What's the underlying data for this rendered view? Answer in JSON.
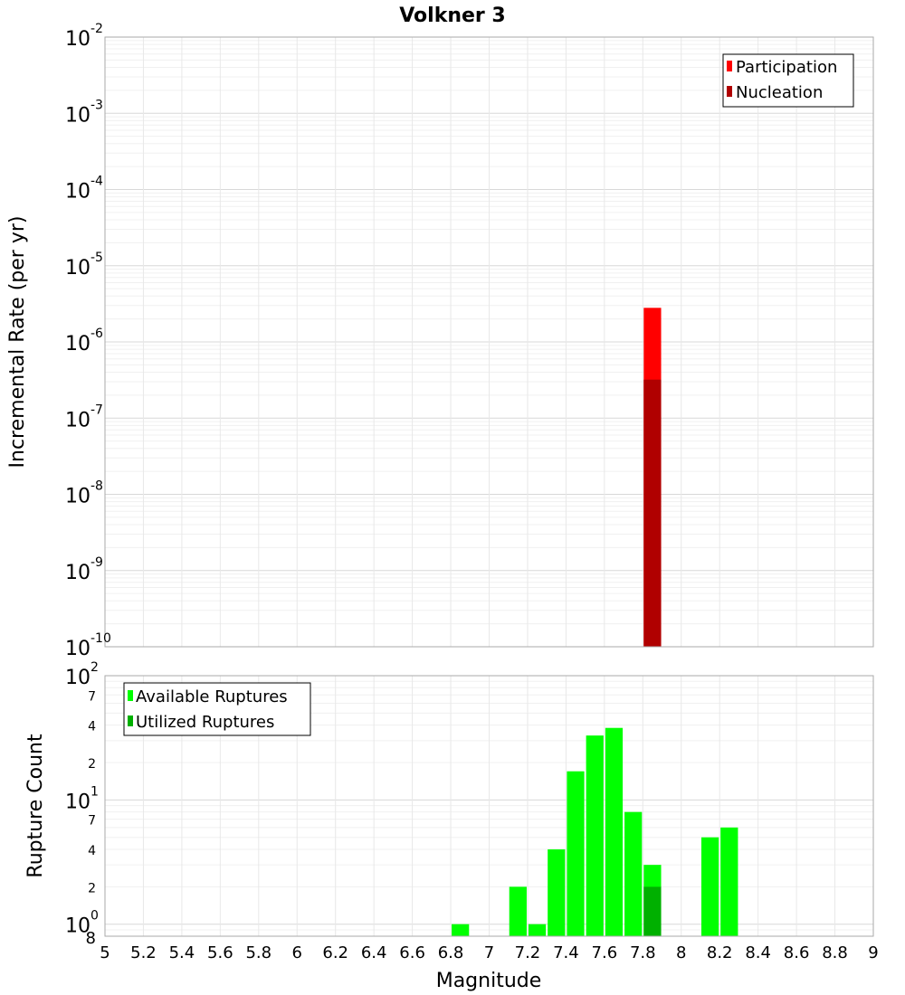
{
  "chart_data": [
    {
      "type": "bar",
      "title": "Volkner 3",
      "xlabel": "",
      "ylabel": "Incremental Rate (per yr)",
      "yscale": "log",
      "ylim": [
        1e-10,
        0.01
      ],
      "xlim": [
        5,
        9
      ],
      "grid": true,
      "legend_position": "top-right",
      "y_tick_labels": [
        {
          "base": "10",
          "exp": "-10",
          "value": 1e-10
        },
        {
          "base": "10",
          "exp": "-9",
          "value": 1e-09
        },
        {
          "base": "10",
          "exp": "-8",
          "value": 1e-08
        },
        {
          "base": "10",
          "exp": "-7",
          "value": 1e-07
        },
        {
          "base": "10",
          "exp": "-6",
          "value": 1e-06
        },
        {
          "base": "10",
          "exp": "-5",
          "value": 1e-05
        },
        {
          "base": "10",
          "exp": "-4",
          "value": 0.0001
        },
        {
          "base": "10",
          "exp": "-3",
          "value": 0.001
        },
        {
          "base": "10",
          "exp": "-2",
          "value": 0.01
        }
      ],
      "series": [
        {
          "name": "Participation",
          "color": "#ff0000",
          "x": [
            7.85
          ],
          "values": [
            2.8e-06
          ]
        },
        {
          "name": "Nucleation",
          "color": "#b00000",
          "x": [
            7.85
          ],
          "values": [
            3.2e-07
          ]
        }
      ]
    },
    {
      "type": "bar",
      "xlabel": "Magnitude",
      "ylabel": "Rupture Count",
      "yscale": "log",
      "ylim": [
        0.8,
        100
      ],
      "xlim": [
        5,
        9
      ],
      "grid": true,
      "legend_position": "top-left",
      "x_tick_labels": [
        "5",
        "5.2",
        "5.4",
        "5.6",
        "5.8",
        "6",
        "6.2",
        "6.4",
        "6.6",
        "6.8",
        "7",
        "7.2",
        "7.4",
        "7.6",
        "7.8",
        "8",
        "8.2",
        "8.4",
        "8.6",
        "8.8",
        "9"
      ],
      "y_tick_labels": [
        {
          "base": "10",
          "exp": "0",
          "value": 1
        },
        {
          "base": "10",
          "exp": "1",
          "value": 10
        },
        {
          "base": "10",
          "exp": "2",
          "value": 100
        }
      ],
      "y_minor_labels": [
        {
          "label": "8",
          "value": 0.8
        },
        {
          "label": "2",
          "value": 2
        },
        {
          "label": "4",
          "value": 4
        },
        {
          "label": "7",
          "value": 7
        },
        {
          "label": "2",
          "value": 20
        },
        {
          "label": "4",
          "value": 40
        },
        {
          "label": "7",
          "value": 70
        }
      ],
      "series": [
        {
          "name": "Available Ruptures",
          "color": "#00ff00",
          "x": [
            6.85,
            7.15,
            7.25,
            7.35,
            7.45,
            7.55,
            7.65,
            7.75,
            7.85,
            8.15,
            8.25
          ],
          "values": [
            1,
            2,
            1,
            4,
            17,
            33,
            38,
            8,
            3,
            5,
            6
          ]
        },
        {
          "name": "Utilized Ruptures",
          "color": "#00b000",
          "x": [
            7.85
          ],
          "values": [
            2
          ]
        }
      ]
    }
  ]
}
